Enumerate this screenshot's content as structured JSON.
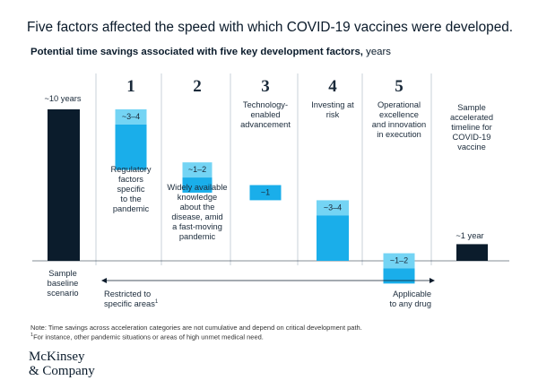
{
  "title": "Five factors affected the speed with which COVID-19 vaccines were developed.",
  "subtitle_bold": "Potential time savings associated with five key development factors,",
  "subtitle_unit": " years",
  "chart_data": {
    "type": "waterfall",
    "unit": "years",
    "baseline": {
      "label": [
        "Sample",
        "baseline",
        "scenario"
      ],
      "value": 10,
      "value_label": "~10 years"
    },
    "factors": [
      {
        "number": "1",
        "label": [
          "Regulatory",
          "factors",
          "specific",
          "to the",
          "pandemic"
        ],
        "range": [
          3,
          4
        ],
        "value_label": "~3–4"
      },
      {
        "number": "2",
        "label": [
          "Widely available",
          "knowledge",
          "about the",
          "disease, amid",
          "a fast-moving",
          "pandemic"
        ],
        "range": [
          1,
          2
        ],
        "value_label": "~1–2"
      },
      {
        "number": "3",
        "label": [
          "Technology-",
          "enabled",
          "advancement"
        ],
        "range": [
          1,
          1
        ],
        "value_label": "~1"
      },
      {
        "number": "4",
        "label": [
          "Investing at",
          "risk"
        ],
        "range": [
          3,
          4
        ],
        "value_label": "~3–4"
      },
      {
        "number": "5",
        "label": [
          "Operational",
          "excellence",
          "and innovation",
          "in execution"
        ],
        "range": [
          1,
          2
        ],
        "value_label": "~1–2"
      }
    ],
    "result": {
      "label": [
        "Sample",
        "accelerated",
        "timeline for",
        "COVID-19",
        "vaccine"
      ],
      "value": 1,
      "value_label": "~1 year"
    },
    "axis_left_label": [
      "Restricted to",
      "specific areas"
    ],
    "axis_left_sup": "1",
    "axis_right_label": [
      "Applicable",
      "to any drug"
    ],
    "colors": {
      "dark": "#0b1c2c",
      "light": "#74d4f4",
      "mid": "#1aaeea",
      "divider": "#c8d0d8"
    }
  },
  "note1": "Note: Time savings across acceleration categories are not cumulative and depend on critical development path.",
  "note2": "For instance, other pandemic situations or areas of high unmet medical need.",
  "note2_sup": "1",
  "logo": [
    "McKinsey",
    "& Company"
  ]
}
